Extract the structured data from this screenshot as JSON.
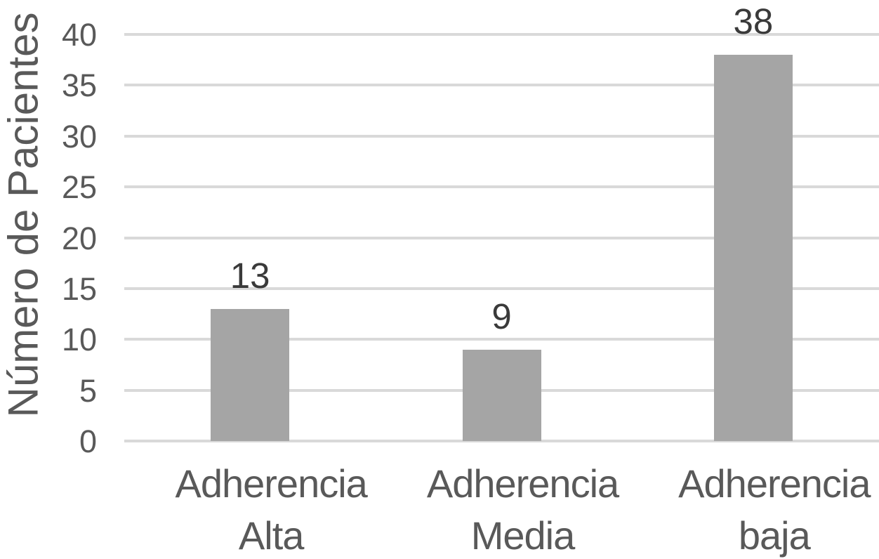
{
  "chart_data": {
    "type": "bar",
    "title": "",
    "ylabel": "Número de Pacientes",
    "xlabel": "",
    "categories": [
      "Adherencia Alta",
      "Adherencia Media",
      "Adherencia baja"
    ],
    "category_lines": [
      [
        "Adherencia",
        "Alta"
      ],
      [
        "Adherencia",
        "Media"
      ],
      [
        "Adherencia",
        "baja"
      ]
    ],
    "values": [
      13,
      9,
      38
    ],
    "data_labels": [
      "13",
      "9",
      "38"
    ],
    "yticks": [
      0,
      5,
      10,
      15,
      20,
      25,
      30,
      35,
      40
    ],
    "ylim": [
      0,
      40
    ],
    "grid": "horizontal",
    "legend_position": "none",
    "colors": {
      "bar": "#a5a5a5",
      "gridline": "#d9d9d9",
      "axis_text": "#595959",
      "data_label": "#3a3a3a",
      "background": "#ffffff"
    }
  }
}
